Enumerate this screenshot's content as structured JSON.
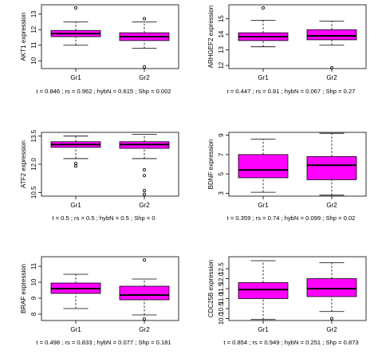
{
  "colors": {
    "box_fill": "#ff00ff",
    "stroke": "#000000"
  },
  "chart_data": [
    {
      "type": "boxplot",
      "ylabel": "AKT1 expression",
      "categories": [
        "Gr1",
        "Gr2"
      ],
      "ylim": [
        9.5,
        13.6
      ],
      "yticks": [
        10,
        11,
        12,
        13
      ],
      "boxes": [
        {
          "category": "Gr1",
          "whisker_low": 11.0,
          "q1": 11.55,
          "median": 11.75,
          "q3": 11.95,
          "whisker_high": 12.5,
          "outliers": [
            13.4
          ]
        },
        {
          "category": "Gr2",
          "whisker_low": 10.8,
          "q1": 11.3,
          "median": 11.55,
          "q3": 11.8,
          "whisker_high": 12.5,
          "outliers": [
            12.7,
            9.6
          ]
        }
      ],
      "stats": "t = 0.846 ; rs = 0.962 ; hybN = 0.615 ; Shp = 0.002"
    },
    {
      "type": "boxplot",
      "ylabel": "ARHGEF2 expression",
      "categories": [
        "Gr1",
        "Gr2"
      ],
      "ylim": [
        11.8,
        15.9
      ],
      "yticks": [
        12,
        13,
        14,
        15
      ],
      "boxes": [
        {
          "category": "Gr1",
          "whisker_low": 13.2,
          "q1": 13.6,
          "median": 13.85,
          "q3": 14.1,
          "whisker_high": 14.9,
          "outliers": [
            15.7
          ]
        },
        {
          "category": "Gr2",
          "whisker_low": 13.3,
          "q1": 13.65,
          "median": 13.9,
          "q3": 14.3,
          "whisker_high": 14.85,
          "outliers": [
            11.85
          ]
        }
      ],
      "stats": "t = 0.447 ; rs = 0.81 ; hybN = 0.067 ; Shp = 0.27"
    },
    {
      "type": "boxplot",
      "ylabel": "ATF2 expression",
      "categories": [
        "Gr1",
        "Gr2"
      ],
      "ylim": [
        10.3,
        13.7
      ],
      "yticks": [
        10.5,
        12.0,
        13.5
      ],
      "ytick_labels": [
        "10.5",
        "12.0",
        "13.5"
      ],
      "boxes": [
        {
          "category": "Gr1",
          "whisker_low": 12.3,
          "q1": 12.9,
          "median": 13.05,
          "q3": 13.2,
          "whisker_high": 13.5,
          "outliers": [
            12.05,
            11.9
          ]
        },
        {
          "category": "Gr2",
          "whisker_low": 12.3,
          "q1": 12.85,
          "median": 13.05,
          "q3": 13.2,
          "whisker_high": 13.6,
          "outliers": [
            11.7,
            11.4,
            10.6,
            10.4
          ]
        }
      ],
      "stats": "t = 0.5 ; rs = 0.5 ; hybN = 0.5 ; Shp = 0"
    },
    {
      "type": "boxplot",
      "ylabel": "BDNF expression",
      "categories": [
        "Gr1",
        "Gr2"
      ],
      "ylim": [
        2.7,
        9.3
      ],
      "yticks": [
        3,
        5,
        7,
        9
      ],
      "boxes": [
        {
          "category": "Gr1",
          "whisker_low": 3.1,
          "q1": 4.6,
          "median": 5.4,
          "q3": 7.0,
          "whisker_high": 8.6,
          "outliers": []
        },
        {
          "category": "Gr2",
          "whisker_low": 2.8,
          "q1": 4.4,
          "median": 5.9,
          "q3": 6.8,
          "whisker_high": 9.2,
          "outliers": []
        }
      ],
      "stats": "t = 0.359 ; rs = 0.74 ; hybN = 0.099 ; Shp = 0.02"
    },
    {
      "type": "boxplot",
      "ylabel": "BRAF expression",
      "categories": [
        "Gr1",
        "Gr2"
      ],
      "ylim": [
        7.6,
        11.6
      ],
      "yticks": [
        8,
        9,
        10,
        11
      ],
      "boxes": [
        {
          "category": "Gr1",
          "whisker_low": 8.35,
          "q1": 9.3,
          "median": 9.6,
          "q3": 9.95,
          "whisker_high": 10.5,
          "outliers": []
        },
        {
          "category": "Gr2",
          "whisker_low": 7.95,
          "q1": 8.9,
          "median": 9.2,
          "q3": 9.75,
          "whisker_high": 10.2,
          "outliers": [
            11.4,
            7.7
          ]
        }
      ],
      "stats": "t = 0.498 ; rs = 0.833 ; hybN = 0.077 ; Shp = 0.181"
    },
    {
      "type": "boxplot",
      "ylabel": "CDC25B expression",
      "categories": [
        "Gr1",
        "Gr2"
      ],
      "ylim": [
        9.9,
        13.1
      ],
      "yticks": [
        10.0,
        10.5,
        11.0,
        11.5,
        12.0,
        12.5
      ],
      "ytick_labels": [
        "10.0",
        "10.5",
        "11.0",
        "11.5",
        "12.0",
        "12.5"
      ],
      "boxes": [
        {
          "category": "Gr1",
          "whisker_low": 9.95,
          "q1": 11.0,
          "median": 11.45,
          "q3": 11.8,
          "whisker_high": 12.9,
          "outliers": []
        },
        {
          "category": "Gr2",
          "whisker_low": 10.35,
          "q1": 11.1,
          "median": 11.5,
          "q3": 12.0,
          "whisker_high": 12.8,
          "outliers": [
            10.0
          ]
        }
      ],
      "stats": "t = 0.854 ; rs = 0.949 ; hybN = 0.251 ; Shp = 0.873"
    }
  ]
}
